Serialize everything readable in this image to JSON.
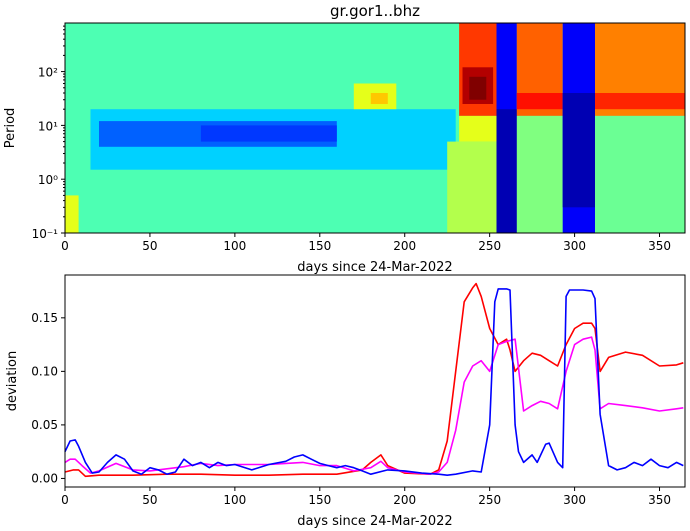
{
  "figure": {
    "title": "gr.gor1..bhz"
  },
  "chart_data": [
    {
      "type": "heatmap",
      "title": "gr.gor1..bhz",
      "xlabel": "days since 24-Mar-2022",
      "ylabel": "Period",
      "xlim": [
        0,
        365
      ],
      "ylim": [
        0.1,
        800
      ],
      "yscale": "log",
      "colormap": "jet",
      "xticks": [
        "0",
        "50",
        "100",
        "150",
        "200",
        "250",
        "300",
        "350"
      ],
      "xtick_values": [
        0,
        50,
        100,
        150,
        200,
        250,
        300,
        350
      ],
      "yticks": [
        "10⁻¹",
        "10⁰",
        "10¹",
        "10²"
      ],
      "ytick_values": [
        0.1,
        1,
        10,
        100
      ],
      "regions": [
        {
          "x": [
            0,
            365
          ],
          "y": [
            0.1,
            800
          ],
          "level": 0.45
        },
        {
          "x": [
            0,
            8
          ],
          "y": [
            0.1,
            0.5
          ],
          "level": 0.6
        },
        {
          "x": [
            15,
            230
          ],
          "y": [
            1.5,
            20
          ],
          "level": 0.33
        },
        {
          "x": [
            20,
            160
          ],
          "y": [
            4,
            12
          ],
          "level": 0.22
        },
        {
          "x": [
            80,
            160
          ],
          "y": [
            5,
            10
          ],
          "level": 0.18
        },
        {
          "x": [
            170,
            195
          ],
          "y": [
            20,
            60
          ],
          "level": 0.6
        },
        {
          "x": [
            180,
            190
          ],
          "y": [
            25,
            40
          ],
          "level": 0.68
        },
        {
          "x": [
            225,
            254
          ],
          "y": [
            0.1,
            5
          ],
          "level": 0.55
        },
        {
          "x": [
            232,
            254
          ],
          "y": [
            15,
            800
          ],
          "level": 0.82
        },
        {
          "x": [
            232,
            254
          ],
          "y": [
            5,
            15
          ],
          "level": 0.6
        },
        {
          "x": [
            234,
            252
          ],
          "y": [
            25,
            120
          ],
          "level": 0.95
        },
        {
          "x": [
            238,
            248
          ],
          "y": [
            30,
            80
          ],
          "level": 1.0
        },
        {
          "x": [
            254,
            266
          ],
          "y": [
            0.1,
            800
          ],
          "level": 0.12
        },
        {
          "x": [
            254,
            266
          ],
          "y": [
            0.1,
            20
          ],
          "level": 0.05
        },
        {
          "x": [
            266,
            293
          ],
          "y": [
            15,
            800
          ],
          "level": 0.78
        },
        {
          "x": [
            266,
            293
          ],
          "y": [
            20,
            40
          ],
          "level": 0.86
        },
        {
          "x": [
            266,
            293
          ],
          "y": [
            0.1,
            15
          ],
          "level": 0.5
        },
        {
          "x": [
            293,
            312
          ],
          "y": [
            0.1,
            800
          ],
          "level": 0.12
        },
        {
          "x": [
            293,
            312
          ],
          "y": [
            0.3,
            40
          ],
          "level": 0.05
        },
        {
          "x": [
            312,
            365
          ],
          "y": [
            15,
            800
          ],
          "level": 0.75
        },
        {
          "x": [
            312,
            365
          ],
          "y": [
            20,
            40
          ],
          "level": 0.84
        },
        {
          "x": [
            312,
            365
          ],
          "y": [
            0.1,
            15
          ],
          "level": 0.48
        }
      ]
    },
    {
      "type": "line",
      "xlabel": "days since 24-Mar-2022",
      "ylabel": "deviation",
      "xlim": [
        0,
        365
      ],
      "ylim": [
        -0.008,
        0.19
      ],
      "xticks": [
        "0",
        "50",
        "100",
        "150",
        "200",
        "250",
        "300",
        "350"
      ],
      "xtick_values": [
        0,
        50,
        100,
        150,
        200,
        250,
        300,
        350
      ],
      "yticks": [
        "0.00",
        "0.05",
        "0.10",
        "0.15"
      ],
      "ytick_values": [
        0,
        0.05,
        0.1,
        0.15
      ],
      "series": [
        {
          "color": "#ff0000",
          "x": [
            0,
            5,
            8,
            12,
            20,
            40,
            60,
            80,
            100,
            120,
            140,
            160,
            175,
            180,
            186,
            190,
            200,
            215,
            220,
            225,
            230,
            235,
            240,
            242,
            245,
            250,
            255,
            260,
            262,
            265,
            270,
            275,
            280,
            285,
            290,
            295,
            300,
            305,
            310,
            312,
            315,
            320,
            330,
            340,
            350,
            360,
            364
          ],
          "y": [
            0.006,
            0.008,
            0.008,
            0.002,
            0.003,
            0.003,
            0.004,
            0.004,
            0.003,
            0.003,
            0.004,
            0.004,
            0.008,
            0.015,
            0.022,
            0.012,
            0.005,
            0.004,
            0.008,
            0.035,
            0.1,
            0.165,
            0.178,
            0.182,
            0.17,
            0.14,
            0.125,
            0.13,
            0.12,
            0.1,
            0.11,
            0.117,
            0.115,
            0.11,
            0.105,
            0.125,
            0.14,
            0.145,
            0.145,
            0.14,
            0.1,
            0.113,
            0.118,
            0.115,
            0.105,
            0.106,
            0.108
          ]
        },
        {
          "color": "#ff00ff",
          "x": [
            0,
            3,
            6,
            10,
            15,
            20,
            30,
            40,
            50,
            60,
            70,
            80,
            90,
            100,
            110,
            120,
            130,
            140,
            150,
            160,
            170,
            180,
            186,
            190,
            200,
            215,
            220,
            225,
            230,
            235,
            240,
            245,
            250,
            255,
            260,
            265,
            270,
            275,
            280,
            285,
            290,
            295,
            300,
            305,
            310,
            312,
            315,
            320,
            330,
            340,
            350,
            360,
            364
          ],
          "y": [
            0.015,
            0.018,
            0.018,
            0.012,
            0.005,
            0.007,
            0.014,
            0.008,
            0.007,
            0.009,
            0.011,
            0.014,
            0.012,
            0.013,
            0.013,
            0.013,
            0.014,
            0.015,
            0.012,
            0.012,
            0.007,
            0.01,
            0.016,
            0.01,
            0.006,
            0.004,
            0.006,
            0.015,
            0.045,
            0.09,
            0.105,
            0.11,
            0.1,
            0.125,
            0.128,
            0.13,
            0.063,
            0.068,
            0.072,
            0.07,
            0.065,
            0.1,
            0.125,
            0.13,
            0.132,
            0.12,
            0.065,
            0.07,
            0.068,
            0.066,
            0.063,
            0.065,
            0.066
          ]
        },
        {
          "color": "#0000ff",
          "x": [
            0,
            3,
            6,
            8,
            12,
            16,
            20,
            25,
            30,
            35,
            40,
            45,
            50,
            55,
            60,
            65,
            70,
            75,
            80,
            85,
            90,
            95,
            100,
            110,
            120,
            130,
            135,
            140,
            145,
            150,
            155,
            160,
            165,
            170,
            175,
            180,
            190,
            200,
            210,
            220,
            225,
            230,
            240,
            245,
            250,
            253,
            255,
            258,
            260,
            262,
            265,
            267,
            270,
            275,
            278,
            283,
            285,
            290,
            293,
            295,
            297,
            300,
            305,
            310,
            312,
            315,
            320,
            325,
            330,
            335,
            340,
            345,
            350,
            355,
            360,
            364
          ],
          "y": [
            0.025,
            0.035,
            0.036,
            0.03,
            0.015,
            0.005,
            0.006,
            0.015,
            0.022,
            0.018,
            0.007,
            0.004,
            0.01,
            0.008,
            0.004,
            0.006,
            0.018,
            0.012,
            0.015,
            0.01,
            0.015,
            0.012,
            0.013,
            0.008,
            0.013,
            0.016,
            0.02,
            0.022,
            0.018,
            0.014,
            0.012,
            0.01,
            0.012,
            0.01,
            0.007,
            0.004,
            0.008,
            0.007,
            0.005,
            0.004,
            0.003,
            0.004,
            0.007,
            0.006,
            0.05,
            0.165,
            0.177,
            0.177,
            0.177,
            0.176,
            0.05,
            0.025,
            0.015,
            0.022,
            0.015,
            0.032,
            0.033,
            0.015,
            0.01,
            0.17,
            0.176,
            0.176,
            0.176,
            0.175,
            0.168,
            0.06,
            0.012,
            0.008,
            0.01,
            0.015,
            0.012,
            0.018,
            0.012,
            0.01,
            0.015,
            0.012
          ]
        }
      ]
    }
  ]
}
